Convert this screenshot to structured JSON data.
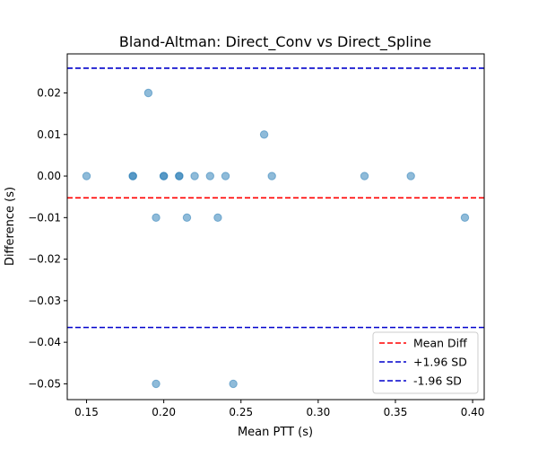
{
  "chart_data": {
    "type": "scatter",
    "title": "Bland-Altman: Direct_Conv vs Direct_Spline",
    "xlabel": "Mean PTT (s)",
    "ylabel": "Difference (s)",
    "xlim": [
      0.1375,
      0.4075
    ],
    "ylim": [
      -0.0538,
      0.0294
    ],
    "xticks": [
      0.15,
      0.2,
      0.25,
      0.3,
      0.35,
      0.4
    ],
    "xtick_labels": [
      "0.15",
      "0.20",
      "0.25",
      "0.30",
      "0.35",
      "0.40"
    ],
    "yticks": [
      0.02,
      0.01,
      0.0,
      -0.01,
      -0.02,
      -0.03,
      -0.04,
      -0.05
    ],
    "ytick_labels": [
      "0.02",
      "0.01",
      "0.00",
      "−0.01",
      "−0.02",
      "−0.03",
      "−0.04",
      "−0.05"
    ],
    "grid": false,
    "legend_position": "lower-right",
    "points": {
      "x": [
        0.15,
        0.18,
        0.18,
        0.19,
        0.195,
        0.195,
        0.2,
        0.2,
        0.21,
        0.21,
        0.215,
        0.22,
        0.23,
        0.235,
        0.24,
        0.245,
        0.265,
        0.27,
        0.33,
        0.36,
        0.395
      ],
      "y": [
        0.0,
        0.0,
        0.0,
        0.02,
        -0.01,
        -0.05,
        0.0,
        0.0,
        0.0,
        0.0,
        -0.01,
        0.0,
        0.0,
        -0.01,
        0.0,
        -0.05,
        0.01,
        0.0,
        0.0,
        0.0,
        -0.01
      ],
      "color": "#1f77b4",
      "alpha": 0.5
    },
    "lines": [
      {
        "name": "Mean Diff",
        "y": -0.00524,
        "color": "#ff0000",
        "style": "dashed"
      },
      {
        "name": "+1.96 SD",
        "y": 0.02595,
        "color": "#0000cc",
        "style": "dashed"
      },
      {
        "name": "-1.96 SD",
        "y": -0.03643,
        "color": "#0000cc",
        "style": "dashed"
      }
    ]
  }
}
